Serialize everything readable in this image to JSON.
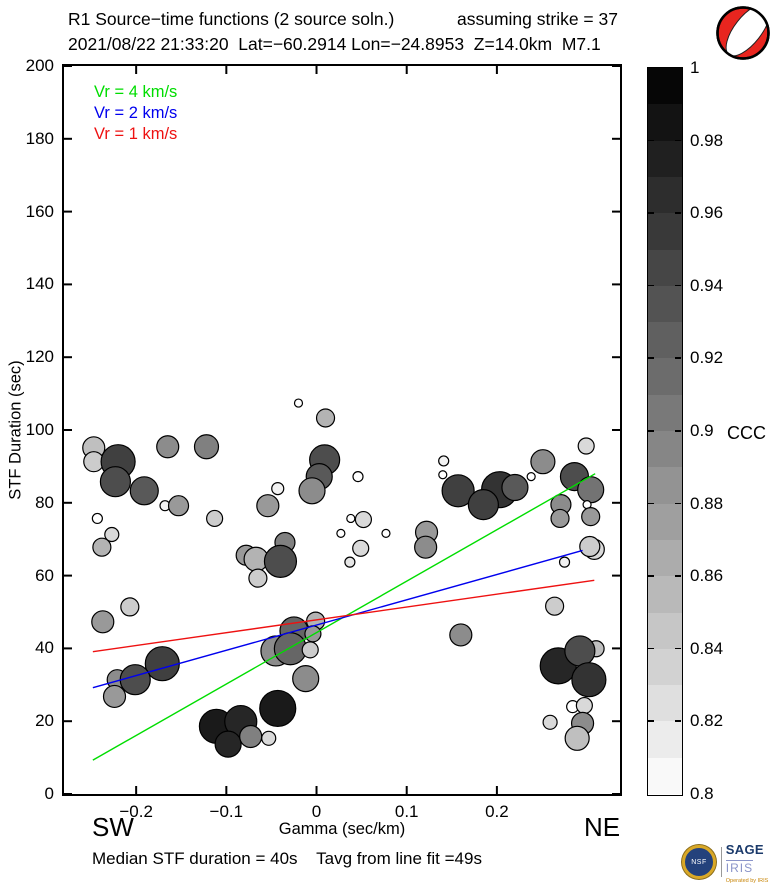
{
  "header": {
    "title": "R1 Source−time functions (2 source soln.)",
    "strike": "assuming strike = 37",
    "event_info": "2021/08/22 21:33:20  Lat=−60.2914 Lon=−24.8953  Z=14.0km  M7.1"
  },
  "legend": {
    "items": [
      {
        "label": "Vr = 4 km/s",
        "color": "#00dd00"
      },
      {
        "label": "Vr = 2 km/s",
        "color": "#0000ee"
      },
      {
        "label": "Vr = 1 km/s",
        "color": "#ee1111"
      }
    ]
  },
  "axes": {
    "ylabel": "STF Duration (sec)",
    "xlabel": "Gamma (sec/km)",
    "sw_label": "SW",
    "ne_label": "NE",
    "xticks": [
      {
        "v": -0.2,
        "label": "−0.2"
      },
      {
        "v": -0.1,
        "label": "−0.1"
      },
      {
        "v": 0,
        "label": "0"
      },
      {
        "v": 0.1,
        "label": "0.1"
      },
      {
        "v": 0.2,
        "label": "0.2"
      }
    ],
    "yticks": [
      {
        "v": 0,
        "label": "0"
      },
      {
        "v": 20,
        "label": "20"
      },
      {
        "v": 40,
        "label": "40"
      },
      {
        "v": 60,
        "label": "60"
      },
      {
        "v": 80,
        "label": "80"
      },
      {
        "v": 100,
        "label": "100"
      },
      {
        "v": 120,
        "label": "120"
      },
      {
        "v": 140,
        "label": "140"
      },
      {
        "v": 160,
        "label": "160"
      },
      {
        "v": 180,
        "label": "180"
      },
      {
        "v": 200,
        "label": "200"
      }
    ]
  },
  "colorbar": {
    "label": "CCC",
    "min": 0.8,
    "max": 1.0,
    "segments": 20,
    "ticks": [
      {
        "v": 1,
        "label": "1"
      },
      {
        "v": 0.98,
        "label": "0.98"
      },
      {
        "v": 0.96,
        "label": "0.96"
      },
      {
        "v": 0.94,
        "label": "0.94"
      },
      {
        "v": 0.92,
        "label": "0.92"
      },
      {
        "v": 0.9,
        "label": "0.9"
      },
      {
        "v": 0.88,
        "label": "0.88"
      },
      {
        "v": 0.86,
        "label": "0.86"
      },
      {
        "v": 0.84,
        "label": "0.84"
      },
      {
        "v": 0.82,
        "label": "0.82"
      },
      {
        "v": 0.8,
        "label": "0.8"
      }
    ]
  },
  "footer": {
    "stats": "Median STF duration = 40s    Tavg from line fit =49s"
  },
  "logo": {
    "seal_text": "NSF",
    "sage": "SAGE",
    "iris": "IRIS",
    "caption": "Operated by IRIS"
  },
  "colors": {
    "beachball_red": "#e8251f",
    "marker_stroke": "#000000"
  },
  "chart_data": {
    "type": "scatter",
    "title": "R1 Source−time functions (2 source soln.) assuming strike = 37",
    "xlabel": "Gamma (sec/km)",
    "ylabel": "STF Duration (sec)",
    "xlim": [
      -0.28,
      0.3365
    ],
    "ylim": [
      0,
      200
    ],
    "grid": false,
    "colorbar_label": "CCC",
    "colorbar_range": [
      0.8,
      1.0
    ],
    "median_stf_duration_s": 40,
    "tavg_from_line_fit_s": 49,
    "fit_lines": [
      {
        "name": "Vr = 4 km/s",
        "color": "#00dd00",
        "x1": -0.248,
        "y1": 9.3,
        "x2": 0.309,
        "y2": 88.0
      },
      {
        "name": "Vr = 2 km/s",
        "color": "#0000ee",
        "x1": -0.248,
        "y1": 29.2,
        "x2": 0.295,
        "y2": 66.9
      },
      {
        "name": "Vr = 1 km/s",
        "color": "#ee1111",
        "x1": -0.248,
        "y1": 39.1,
        "x2": 0.308,
        "y2": 58.7
      }
    ],
    "points": [
      {
        "gamma": -0.247,
        "duration": 95.1,
        "ccc": 0.85,
        "r": 11
      },
      {
        "gamma": -0.247,
        "duration": 91.3,
        "ccc": 0.84,
        "r": 10
      },
      {
        "gamma": -0.22,
        "duration": 91.3,
        "ccc": 0.95,
        "r": 17
      },
      {
        "gamma": -0.223,
        "duration": 85.8,
        "ccc": 0.94,
        "r": 15
      },
      {
        "gamma": -0.191,
        "duration": 83.3,
        "ccc": 0.93,
        "r": 14
      },
      {
        "gamma": -0.165,
        "duration": 95.4,
        "ccc": 0.89,
        "r": 11
      },
      {
        "gamma": -0.122,
        "duration": 95.4,
        "ccc": 0.9,
        "r": 12
      },
      {
        "gamma": -0.168,
        "duration": 79.2,
        "ccc": 0.81,
        "r": 5
      },
      {
        "gamma": -0.153,
        "duration": 79.2,
        "ccc": 0.88,
        "r": 10
      },
      {
        "gamma": -0.243,
        "duration": 75.7,
        "ccc": 0.8,
        "r": 5
      },
      {
        "gamma": -0.227,
        "duration": 71.3,
        "ccc": 0.83,
        "r": 7
      },
      {
        "gamma": -0.238,
        "duration": 67.8,
        "ccc": 0.86,
        "r": 9
      },
      {
        "gamma": -0.113,
        "duration": 75.7,
        "ccc": 0.84,
        "r": 8
      },
      {
        "gamma": -0.02,
        "duration": 107.4,
        "ccc": 0.8,
        "r": 4
      },
      {
        "gamma": 0.01,
        "duration": 103.3,
        "ccc": 0.86,
        "r": 9
      },
      {
        "gamma": 0.009,
        "duration": 91.8,
        "ccc": 0.94,
        "r": 15
      },
      {
        "gamma": 0.003,
        "duration": 87.2,
        "ccc": 0.93,
        "r": 13
      },
      {
        "gamma": -0.005,
        "duration": 83.3,
        "ccc": 0.89,
        "r": 13
      },
      {
        "gamma": -0.043,
        "duration": 83.9,
        "ccc": 0.81,
        "r": 6
      },
      {
        "gamma": -0.054,
        "duration": 79.2,
        "ccc": 0.88,
        "r": 11
      },
      {
        "gamma": 0.046,
        "duration": 87.2,
        "ccc": 0.8,
        "r": 5
      },
      {
        "gamma": 0.052,
        "duration": 75.4,
        "ccc": 0.83,
        "r": 8
      },
      {
        "gamma": 0.038,
        "duration": 75.7,
        "ccc": 0.8,
        "r": 4
      },
      {
        "gamma": 0.027,
        "duration": 71.6,
        "ccc": 0.8,
        "r": 4
      },
      {
        "gamma": 0.077,
        "duration": 71.6,
        "ccc": 0.8,
        "r": 4
      },
      {
        "gamma": 0.049,
        "duration": 67.5,
        "ccc": 0.83,
        "r": 8
      },
      {
        "gamma": 0.037,
        "duration": 63.7,
        "ccc": 0.82,
        "r": 5
      },
      {
        "gamma": -0.078,
        "duration": 65.6,
        "ccc": 0.88,
        "r": 10
      },
      {
        "gamma": -0.067,
        "duration": 64.5,
        "ccc": 0.86,
        "r": 12
      },
      {
        "gamma": -0.065,
        "duration": 59.3,
        "ccc": 0.84,
        "r": 9
      },
      {
        "gamma": -0.035,
        "duration": 69.1,
        "ccc": 0.9,
        "r": 10
      },
      {
        "gamma": -0.04,
        "duration": 63.9,
        "ccc": 0.94,
        "r": 16
      },
      {
        "gamma": 0.141,
        "duration": 91.5,
        "ccc": 0.81,
        "r": 5
      },
      {
        "gamma": 0.14,
        "duration": 87.7,
        "ccc": 0.8,
        "r": 4
      },
      {
        "gamma": 0.157,
        "duration": 83.3,
        "ccc": 0.95,
        "r": 16
      },
      {
        "gamma": 0.203,
        "duration": 83.6,
        "ccc": 0.96,
        "r": 18
      },
      {
        "gamma": 0.185,
        "duration": 79.5,
        "ccc": 0.95,
        "r": 15
      },
      {
        "gamma": 0.22,
        "duration": 84.2,
        "ccc": 0.93,
        "r": 13
      },
      {
        "gamma": 0.251,
        "duration": 91.3,
        "ccc": 0.89,
        "r": 12
      },
      {
        "gamma": 0.238,
        "duration": 87.2,
        "ccc": 0.8,
        "r": 4
      },
      {
        "gamma": 0.286,
        "duration": 87.2,
        "ccc": 0.94,
        "r": 14
      },
      {
        "gamma": 0.304,
        "duration": 83.6,
        "ccc": 0.91,
        "r": 13
      },
      {
        "gamma": 0.299,
        "duration": 95.6,
        "ccc": 0.83,
        "r": 8
      },
      {
        "gamma": 0.3,
        "duration": 79.5,
        "ccc": 0.8,
        "r": 4
      },
      {
        "gamma": 0.304,
        "duration": 76.2,
        "ccc": 0.88,
        "r": 9
      },
      {
        "gamma": 0.271,
        "duration": 79.5,
        "ccc": 0.89,
        "r": 10
      },
      {
        "gamma": 0.27,
        "duration": 75.7,
        "ccc": 0.88,
        "r": 9
      },
      {
        "gamma": 0.308,
        "duration": 67.2,
        "ccc": 0.83,
        "r": 10
      },
      {
        "gamma": 0.303,
        "duration": 68.0,
        "ccc": 0.84,
        "r": 10
      },
      {
        "gamma": 0.275,
        "duration": 63.7,
        "ccc": 0.81,
        "r": 5
      },
      {
        "gamma": 0.122,
        "duration": 71.9,
        "ccc": 0.88,
        "r": 11
      },
      {
        "gamma": 0.121,
        "duration": 67.8,
        "ccc": 0.89,
        "r": 11
      },
      {
        "gamma": -0.237,
        "duration": 47.3,
        "ccc": 0.88,
        "r": 11
      },
      {
        "gamma": -0.207,
        "duration": 51.4,
        "ccc": 0.84,
        "r": 9
      },
      {
        "gamma": -0.171,
        "duration": 35.8,
        "ccc": 0.95,
        "r": 17
      },
      {
        "gamma": -0.221,
        "duration": 31.4,
        "ccc": 0.89,
        "r": 10
      },
      {
        "gamma": -0.201,
        "duration": 31.4,
        "ccc": 0.94,
        "r": 15
      },
      {
        "gamma": -0.224,
        "duration": 26.8,
        "ccc": 0.88,
        "r": 11
      },
      {
        "gamma": -0.111,
        "duration": 18.6,
        "ccc": 0.98,
        "r": 17
      },
      {
        "gamma": -0.084,
        "duration": 19.9,
        "ccc": 0.97,
        "r": 16
      },
      {
        "gamma": -0.098,
        "duration": 13.7,
        "ccc": 0.97,
        "r": 13
      },
      {
        "gamma": -0.073,
        "duration": 15.8,
        "ccc": 0.9,
        "r": 11
      },
      {
        "gamma": -0.001,
        "duration": 47.5,
        "ccc": 0.86,
        "r": 9
      },
      {
        "gamma": -0.025,
        "duration": 44.8,
        "ccc": 0.92,
        "r": 14
      },
      {
        "gamma": -0.004,
        "duration": 44.0,
        "ccc": 0.88,
        "r": 8
      },
      {
        "gamma": -0.045,
        "duration": 39.3,
        "ccc": 0.89,
        "r": 15
      },
      {
        "gamma": -0.029,
        "duration": 39.9,
        "ccc": 0.92,
        "r": 16
      },
      {
        "gamma": -0.007,
        "duration": 39.6,
        "ccc": 0.84,
        "r": 8
      },
      {
        "gamma": -0.012,
        "duration": 31.7,
        "ccc": 0.89,
        "r": 13
      },
      {
        "gamma": -0.043,
        "duration": 23.5,
        "ccc": 0.98,
        "r": 18
      },
      {
        "gamma": -0.053,
        "duration": 15.3,
        "ccc": 0.83,
        "r": 7
      },
      {
        "gamma": 0.16,
        "duration": 43.7,
        "ccc": 0.89,
        "r": 11
      },
      {
        "gamma": 0.264,
        "duration": 51.6,
        "ccc": 0.84,
        "r": 9
      },
      {
        "gamma": 0.31,
        "duration": 39.9,
        "ccc": 0.85,
        "r": 8
      },
      {
        "gamma": 0.268,
        "duration": 35.2,
        "ccc": 0.97,
        "r": 18
      },
      {
        "gamma": 0.292,
        "duration": 39.3,
        "ccc": 0.94,
        "r": 15
      },
      {
        "gamma": 0.302,
        "duration": 31.4,
        "ccc": 0.96,
        "r": 17
      },
      {
        "gamma": 0.284,
        "duration": 24.0,
        "ccc": 0.8,
        "r": 6
      },
      {
        "gamma": 0.297,
        "duration": 24.3,
        "ccc": 0.83,
        "r": 8
      },
      {
        "gamma": 0.259,
        "duration": 19.7,
        "ccc": 0.83,
        "r": 7
      },
      {
        "gamma": 0.295,
        "duration": 19.4,
        "ccc": 0.89,
        "r": 11
      },
      {
        "gamma": 0.289,
        "duration": 15.3,
        "ccc": 0.85,
        "r": 12
      }
    ]
  }
}
